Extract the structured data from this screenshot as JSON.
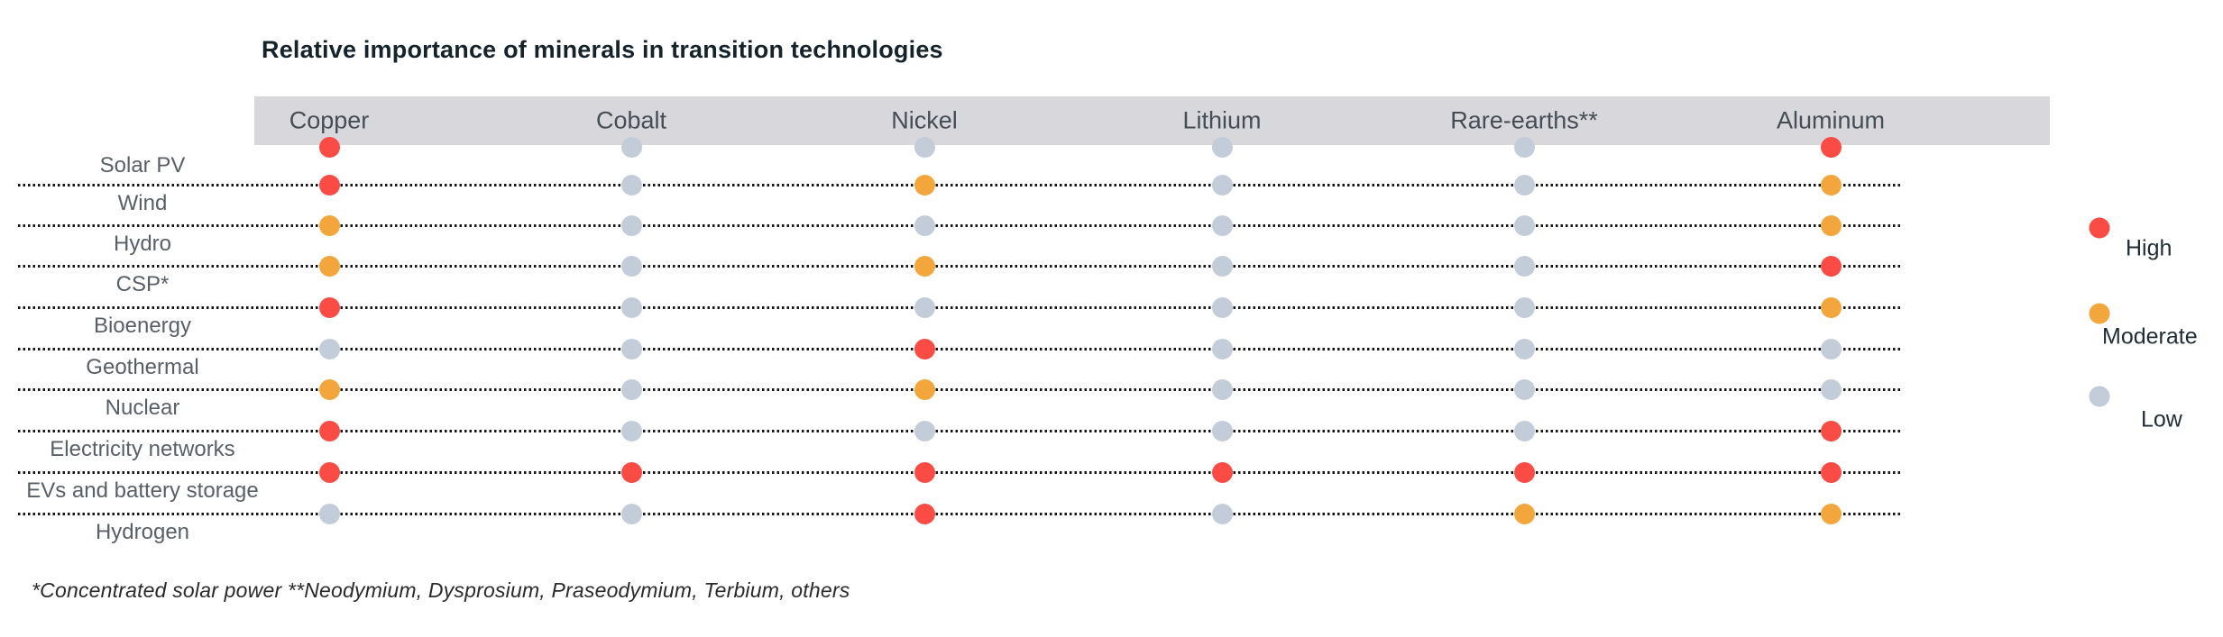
{
  "title": "Relative importance of minerals in transition technologies",
  "footnote": "*Concentrated solar power **Neodymium, Dysprosium, Praseodymium, Terbium, others",
  "legend": {
    "items": [
      {
        "label": "High",
        "level": "High",
        "color": "#fa4b45"
      },
      {
        "label": "Moderate",
        "level": "Moderate",
        "color": "#f2a63c"
      },
      {
        "label": "Low",
        "level": "Low",
        "color": "#c3ccd9"
      }
    ]
  },
  "colors": {
    "high": "#fa4b45",
    "moderate": "#f2a63c",
    "low": "#c3ccd9",
    "header_band": "#d8d8dc"
  },
  "chart_data": {
    "type": "heatmap",
    "title": "Relative importance of minerals in transition technologies",
    "columns": [
      "Copper",
      "Cobalt",
      "Nickel",
      "Lithium",
      "Rare-earths**",
      "Aluminum"
    ],
    "rows": [
      "Solar PV",
      "Wind",
      "Hydro",
      "CSP*",
      "Bioenergy",
      "Geothermal",
      "Nuclear",
      "Electricity networks",
      "EVs and battery storage",
      "Hydrogen"
    ],
    "values": [
      [
        "High",
        "Low",
        "Low",
        "Low",
        "Low",
        "High"
      ],
      [
        "High",
        "Low",
        "Moderate",
        "Low",
        "Low",
        "Moderate"
      ],
      [
        "Moderate",
        "Low",
        "Low",
        "Low",
        "Low",
        "Moderate"
      ],
      [
        "Moderate",
        "Low",
        "Moderate",
        "Low",
        "Low",
        "High"
      ],
      [
        "High",
        "Low",
        "Low",
        "Low",
        "Low",
        "Moderate"
      ],
      [
        "Low",
        "Low",
        "High",
        "Low",
        "Low",
        "Low"
      ],
      [
        "Moderate",
        "Low",
        "Moderate",
        "Low",
        "Low",
        "Low"
      ],
      [
        "High",
        "Low",
        "Low",
        "Low",
        "Low",
        "High"
      ],
      [
        "High",
        "High",
        "High",
        "High",
        "High",
        "High"
      ],
      [
        "Low",
        "Low",
        "High",
        "Low",
        "Moderate",
        "Moderate"
      ]
    ],
    "scale": {
      "High": "#fa4b45",
      "Moderate": "#f2a63c",
      "Low": "#c3ccd9"
    },
    "legend_entries": [
      "High",
      "Moderate",
      "Low"
    ],
    "legend_position": "right",
    "grid": "dotted-row-leaders"
  }
}
